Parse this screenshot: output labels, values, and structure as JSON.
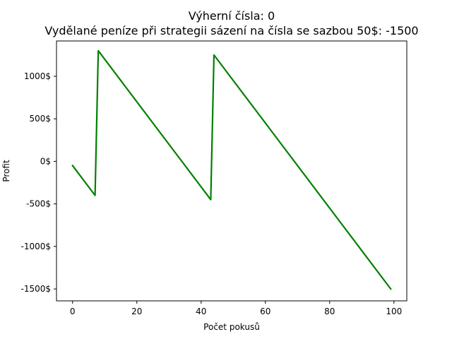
{
  "chart_data": {
    "type": "line",
    "title_line1": "Výherní čísla: 0",
    "title_line2": "Vydělané peníze při strategii sázení na čísla se sazbou 50$: -1500",
    "xlabel": "Počet pokusů",
    "ylabel": "Profit",
    "xlim": [
      -5,
      104
    ],
    "ylim": [
      -1640,
      1415
    ],
    "x_ticks": [
      0,
      20,
      40,
      60,
      80,
      100
    ],
    "x_tick_labels": [
      "0",
      "20",
      "40",
      "60",
      "80",
      "100"
    ],
    "y_ticks": [
      1000,
      500,
      0,
      -500,
      -1000,
      -1500
    ],
    "y_tick_labels": [
      "1000$",
      "500$",
      "0$",
      "-500$",
      "-1000$",
      "-1500$"
    ],
    "grid": false,
    "series": [
      {
        "color": "#008000",
        "x": [
          0,
          7,
          8,
          43,
          44,
          99
        ],
        "y": [
          -50,
          -400,
          1300,
          -450,
          1250,
          -1500
        ]
      }
    ]
  }
}
